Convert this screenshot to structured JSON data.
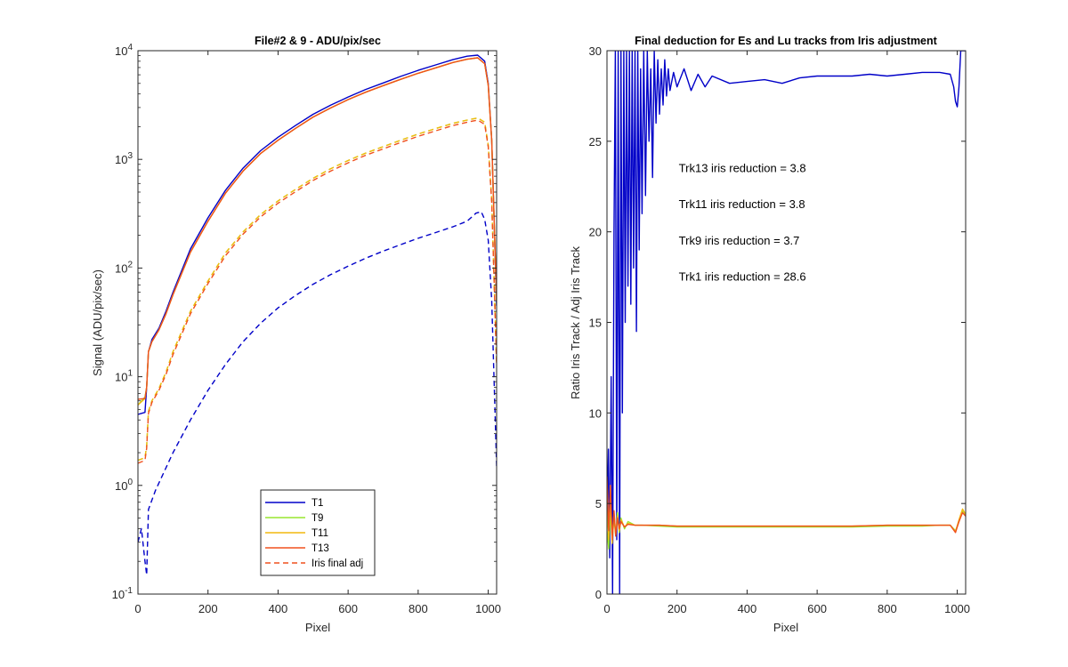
{
  "chart_data": [
    {
      "type": "line",
      "title": "File#2 & 9 - ADU/pix/sec",
      "xlabel": "Pixel",
      "ylabel": "Signal (ADU/pix/sec)",
      "xlim": [
        0,
        1024
      ],
      "ylim": [
        0.1,
        10000
      ],
      "yscale": "log",
      "xticks": [
        0,
        200,
        400,
        600,
        800,
        1000
      ],
      "xtick_labels": [
        "0",
        "200",
        "400",
        "600",
        "800",
        "1000"
      ],
      "yticks": [
        0.1,
        1,
        10,
        100,
        1000,
        10000
      ],
      "ytick_labels": [
        {
          "base": "10",
          "exp": "-1"
        },
        {
          "base": "10",
          "exp": "0"
        },
        {
          "base": "10",
          "exp": "1"
        },
        {
          "base": "10",
          "exp": "2"
        },
        {
          "base": "10",
          "exp": "3"
        },
        {
          "base": "10",
          "exp": "4"
        }
      ],
      "grid": false,
      "legend_position": "bottom-center",
      "series": [
        {
          "name": "T1",
          "color": "#0000c8",
          "dash": "solid",
          "x": [
            0,
            20,
            25,
            30,
            40,
            60,
            80,
            100,
            150,
            200,
            250,
            300,
            350,
            400,
            450,
            500,
            550,
            600,
            650,
            700,
            750,
            800,
            850,
            900,
            940,
            970,
            990,
            1000,
            1010,
            1024
          ],
          "y": [
            4.5,
            4.7,
            8,
            17,
            22,
            28,
            40,
            60,
            150,
            290,
            520,
            830,
            1200,
            1600,
            2050,
            2600,
            3150,
            3750,
            4400,
            5050,
            5800,
            6600,
            7400,
            8300,
            8900,
            9100,
            8000,
            5000,
            1500,
            45
          ]
        },
        {
          "name": "T9",
          "color": "#99e62e",
          "dash": "solid",
          "x": [
            0,
            20,
            25,
            30,
            40,
            60,
            80,
            100,
            150,
            200,
            250,
            300,
            350,
            400,
            450,
            500,
            550,
            600,
            650,
            700,
            750,
            800,
            850,
            900,
            940,
            970,
            990,
            1000,
            1010,
            1024
          ],
          "y": [
            5.5,
            6.5,
            8,
            17,
            21,
            27,
            38,
            57,
            140,
            270,
            490,
            780,
            1130,
            1500,
            1930,
            2450,
            2970,
            3550,
            4150,
            4770,
            5450,
            6200,
            6950,
            7800,
            8350,
            8600,
            7600,
            4800,
            1500,
            50
          ]
        },
        {
          "name": "T11",
          "color": "#f2b90f",
          "dash": "solid",
          "x": [
            0,
            20,
            25,
            30,
            40,
            60,
            80,
            100,
            150,
            200,
            250,
            300,
            350,
            400,
            450,
            500,
            550,
            600,
            650,
            700,
            750,
            800,
            850,
            900,
            940,
            970,
            990,
            1000,
            1010,
            1024
          ],
          "y": [
            5.5,
            6.3,
            8,
            17,
            21,
            27,
            38,
            57,
            140,
            270,
            490,
            780,
            1130,
            1500,
            1930,
            2450,
            2970,
            3550,
            4150,
            4770,
            5450,
            6200,
            6950,
            7800,
            8350,
            8600,
            7600,
            4800,
            1500,
            50
          ]
        },
        {
          "name": "T13",
          "color": "#f0501e",
          "dash": "solid",
          "x": [
            0,
            20,
            25,
            30,
            40,
            60,
            80,
            100,
            150,
            200,
            250,
            300,
            350,
            400,
            450,
            500,
            550,
            600,
            650,
            700,
            750,
            800,
            850,
            900,
            940,
            970,
            990,
            1000,
            1010,
            1024
          ],
          "y": [
            6.2,
            6.3,
            8,
            17,
            21,
            27,
            38,
            57,
            140,
            270,
            490,
            780,
            1130,
            1500,
            1930,
            2450,
            2970,
            3550,
            4150,
            4770,
            5450,
            6200,
            6950,
            7800,
            8350,
            8600,
            7600,
            4800,
            1500,
            50
          ]
        },
        {
          "name": "Iris final adj",
          "color": "#f0501e",
          "dash": "dashed",
          "x": [
            0,
            20,
            25,
            30,
            40,
            60,
            80,
            100,
            150,
            200,
            250,
            300,
            350,
            400,
            450,
            500,
            550,
            600,
            650,
            700,
            750,
            800,
            850,
            900,
            940,
            970,
            990,
            1000,
            1010,
            1024
          ],
          "y": [
            1.6,
            1.7,
            2.2,
            4.6,
            5.8,
            7.5,
            10.5,
            16,
            38,
            72,
            130,
            205,
            295,
            395,
            505,
            640,
            780,
            930,
            1090,
            1250,
            1430,
            1630,
            1830,
            2050,
            2200,
            2300,
            2100,
            1300,
            400,
            13
          ]
        },
        {
          "name": "",
          "color": "#f2b90f",
          "dash": "dashed",
          "x": [
            0,
            20,
            25,
            30,
            40,
            60,
            80,
            100,
            150,
            200,
            250,
            300,
            350,
            400,
            450,
            500,
            550,
            600,
            650,
            700,
            750,
            800,
            850,
            900,
            940,
            970,
            990,
            1000,
            1010,
            1024
          ],
          "y": [
            1.7,
            1.8,
            2.3,
            4.8,
            6,
            7.8,
            11,
            17,
            40,
            76,
            138,
            215,
            310,
            415,
            530,
            670,
            820,
            975,
            1140,
            1310,
            1500,
            1710,
            1920,
            2150,
            2300,
            2400,
            2200,
            1350,
            420,
            13
          ]
        },
        {
          "name": "",
          "color": "#99e62e",
          "dash": "dashed",
          "x": [
            0,
            20,
            25,
            30,
            40,
            60,
            80,
            100,
            150,
            200,
            250,
            300,
            350,
            400,
            450,
            500,
            550,
            600,
            650,
            700,
            750,
            800,
            850,
            900,
            940,
            970,
            990,
            1000,
            1010,
            1024
          ],
          "y": [
            1.7,
            1.8,
            2.3,
            4.8,
            6,
            7.8,
            11,
            17,
            40,
            76,
            138,
            215,
            310,
            415,
            530,
            670,
            820,
            975,
            1140,
            1310,
            1500,
            1710,
            1920,
            2150,
            2300,
            2400,
            2200,
            1350,
            420,
            13
          ]
        },
        {
          "name": "",
          "color": "#0000c8",
          "dash": "dashed",
          "x": [
            0,
            10,
            20,
            25,
            30,
            50,
            100,
            150,
            200,
            250,
            300,
            350,
            400,
            450,
            500,
            550,
            600,
            650,
            700,
            750,
            800,
            850,
            900,
            940,
            965,
            980,
            990,
            1000,
            1010,
            1024
          ],
          "y": [
            0.3,
            0.4,
            0.2,
            0.15,
            0.6,
            0.9,
            2.0,
            4.0,
            7.5,
            13,
            21,
            31,
            43,
            56,
            71,
            87,
            104,
            123,
            143,
            164,
            188,
            212,
            240,
            270,
            320,
            330,
            280,
            180,
            50,
            1.5
          ]
        }
      ]
    },
    {
      "type": "line",
      "title": "Final deduction for Es and Lu tracks from Iris adjustment",
      "xlabel": "Pixel",
      "ylabel": "Ratio Iris Track / Adj Iris Track",
      "xlim": [
        0,
        1024
      ],
      "ylim": [
        0,
        30
      ],
      "yscale": "linear",
      "xticks": [
        0,
        200,
        400,
        600,
        800,
        1000
      ],
      "xtick_labels": [
        "0",
        "200",
        "400",
        "600",
        "800",
        "1000"
      ],
      "yticks": [
        0,
        5,
        10,
        15,
        20,
        25,
        30
      ],
      "ytick_labels": [
        "0",
        "5",
        "10",
        "15",
        "20",
        "25",
        "30"
      ],
      "grid": false,
      "annotations": [
        {
          "text": "Trk13 iris reduction = 3.8",
          "x": 205,
          "y": 23.3
        },
        {
          "text": "Trk11 iris reduction = 3.8",
          "x": 205,
          "y": 21.3
        },
        {
          "text": "Trk9 iris reduction = 3.7",
          "x": 205,
          "y": 19.3
        },
        {
          "text": "Trk1 iris reduction = 28.6",
          "x": 205,
          "y": 17.3
        }
      ],
      "series": [
        {
          "name": "Trk1",
          "color": "#0000c8",
          "dash": "solid",
          "x": [
            0,
            4,
            8,
            12,
            16,
            20,
            24,
            28,
            32,
            36,
            40,
            44,
            48,
            52,
            56,
            60,
            64,
            68,
            72,
            76,
            80,
            84,
            88,
            92,
            96,
            100,
            105,
            110,
            115,
            120,
            125,
            130,
            135,
            140,
            145,
            150,
            155,
            160,
            165,
            170,
            175,
            180,
            190,
            200,
            220,
            240,
            260,
            280,
            300,
            350,
            400,
            450,
            500,
            550,
            600,
            650,
            700,
            750,
            800,
            850,
            900,
            950,
            980,
            990,
            995,
            1000,
            1005,
            1010,
            1015,
            1024
          ],
          "y": [
            4,
            8,
            2,
            12,
            0,
            20,
            30,
            3,
            30,
            0,
            30,
            10,
            30,
            15,
            30,
            17,
            30,
            16,
            30,
            18,
            30,
            14.5,
            30,
            19,
            29,
            21,
            30,
            22,
            30,
            25,
            29,
            23,
            30,
            26,
            29.5,
            26.5,
            29,
            27,
            29.5,
            27.5,
            29,
            27.8,
            28.8,
            28,
            29,
            27.8,
            28.7,
            28,
            28.6,
            28.2,
            28.3,
            28.4,
            28.2,
            28.5,
            28.6,
            28.6,
            28.6,
            28.7,
            28.6,
            28.7,
            28.8,
            28.8,
            28.7,
            28,
            27.2,
            26.9,
            28,
            30,
            30,
            30
          ]
        },
        {
          "name": "Trk9",
          "color": "#99e62e",
          "dash": "solid",
          "x": [
            0,
            5,
            10,
            15,
            20,
            25,
            30,
            35,
            40,
            50,
            60,
            80,
            100,
            150,
            200,
            300,
            400,
            500,
            600,
            700,
            800,
            900,
            950,
            980,
            995,
            1005,
            1015,
            1024
          ],
          "y": [
            3.5,
            2.5,
            4.5,
            3.0,
            4.2,
            3.2,
            4.5,
            3.4,
            4.2,
            3.6,
            4.0,
            3.8,
            3.8,
            3.75,
            3.7,
            3.7,
            3.7,
            3.7,
            3.7,
            3.7,
            3.75,
            3.75,
            3.8,
            3.8,
            3.5,
            4.0,
            4.6,
            4.4
          ]
        },
        {
          "name": "Trk11",
          "color": "#f2b90f",
          "dash": "solid",
          "x": [
            0,
            5,
            10,
            15,
            20,
            25,
            30,
            35,
            40,
            50,
            60,
            80,
            100,
            150,
            200,
            300,
            400,
            500,
            600,
            700,
            800,
            900,
            950,
            980,
            995,
            1005,
            1015,
            1024
          ],
          "y": [
            4.8,
            3.0,
            5.5,
            2.8,
            4.5,
            3.3,
            4.3,
            3.5,
            4.1,
            3.7,
            3.9,
            3.8,
            3.8,
            3.8,
            3.75,
            3.75,
            3.75,
            3.75,
            3.75,
            3.75,
            3.8,
            3.8,
            3.8,
            3.8,
            3.45,
            4.1,
            4.7,
            4.4
          ]
        },
        {
          "name": "Trk13",
          "color": "#f0501e",
          "dash": "solid",
          "x": [
            0,
            5,
            10,
            15,
            20,
            25,
            30,
            35,
            40,
            50,
            60,
            80,
            100,
            150,
            200,
            300,
            400,
            500,
            600,
            700,
            800,
            900,
            950,
            980,
            995,
            1005,
            1015,
            1024
          ],
          "y": [
            6.5,
            3.5,
            6.0,
            3.0,
            4.6,
            3.2,
            4.2,
            3.6,
            4.0,
            3.7,
            3.85,
            3.8,
            3.8,
            3.8,
            3.75,
            3.75,
            3.75,
            3.75,
            3.75,
            3.75,
            3.8,
            3.8,
            3.8,
            3.8,
            3.4,
            4.0,
            4.5,
            4.3
          ]
        }
      ]
    }
  ]
}
